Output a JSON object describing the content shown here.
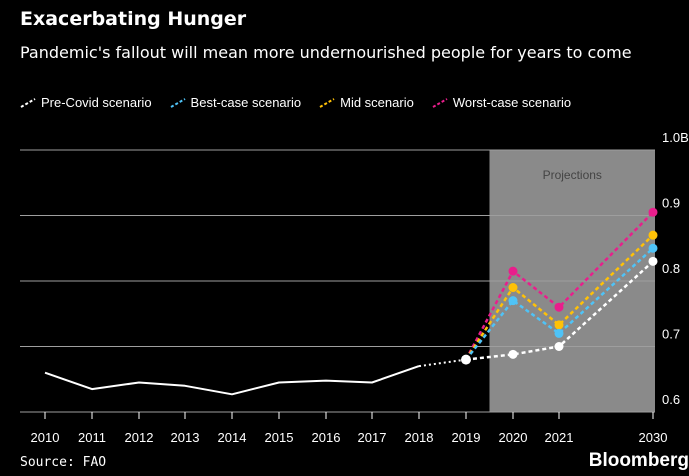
{
  "header": {
    "title": "Exacerbating Hunger",
    "subtitle": "Pandemic's fallout will mean more undernourished people for years to come"
  },
  "footer": {
    "source": "Source: FAO",
    "brand": "Bloomberg"
  },
  "chart_data": {
    "type": "line",
    "title": "Exacerbating Hunger",
    "subtitle": "Pandemic's fallout will mean more undernourished people for years to come",
    "x_labels": [
      "2010",
      "2011",
      "2012",
      "2013",
      "2014",
      "2015",
      "2016",
      "2017",
      "2018",
      "2019",
      "2020",
      "2021",
      "2030"
    ],
    "y_ticks": [
      "0.6",
      "0.7",
      "0.8",
      "0.9",
      "1.0B"
    ],
    "ylim": [
      0.6,
      1.0
    ],
    "grid": true,
    "legend": "top",
    "projections_label": "Projections",
    "projections_range": [
      "2019",
      "2030"
    ],
    "historical": {
      "x": [
        "2010",
        "2011",
        "2012",
        "2013",
        "2014",
        "2015",
        "2016",
        "2017",
        "2018"
      ],
      "values": [
        0.66,
        0.635,
        0.645,
        0.64,
        0.627,
        0.645,
        0.648,
        0.645,
        0.67
      ]
    },
    "series": [
      {
        "name": "Pre-Covid scenario",
        "color": "#ffffff",
        "x": [
          "2019",
          "2020",
          "2021",
          "2030"
        ],
        "values": [
          0.68,
          0.688,
          0.7,
          0.83
        ]
      },
      {
        "name": "Best-case scenario",
        "color": "#4fc3f7",
        "x": [
          "2019",
          "2020",
          "2021",
          "2030"
        ],
        "values": [
          0.68,
          0.77,
          0.72,
          0.85
        ]
      },
      {
        "name": "Mid scenario",
        "color": "#ffc107",
        "x": [
          "2019",
          "2020",
          "2021",
          "2030"
        ],
        "values": [
          0.68,
          0.79,
          0.733,
          0.87
        ]
      },
      {
        "name": "Worst-case scenario",
        "color": "#e91e8c",
        "x": [
          "2019",
          "2020",
          "2021",
          "2030"
        ],
        "values": [
          0.68,
          0.815,
          0.76,
          0.905
        ]
      }
    ]
  }
}
